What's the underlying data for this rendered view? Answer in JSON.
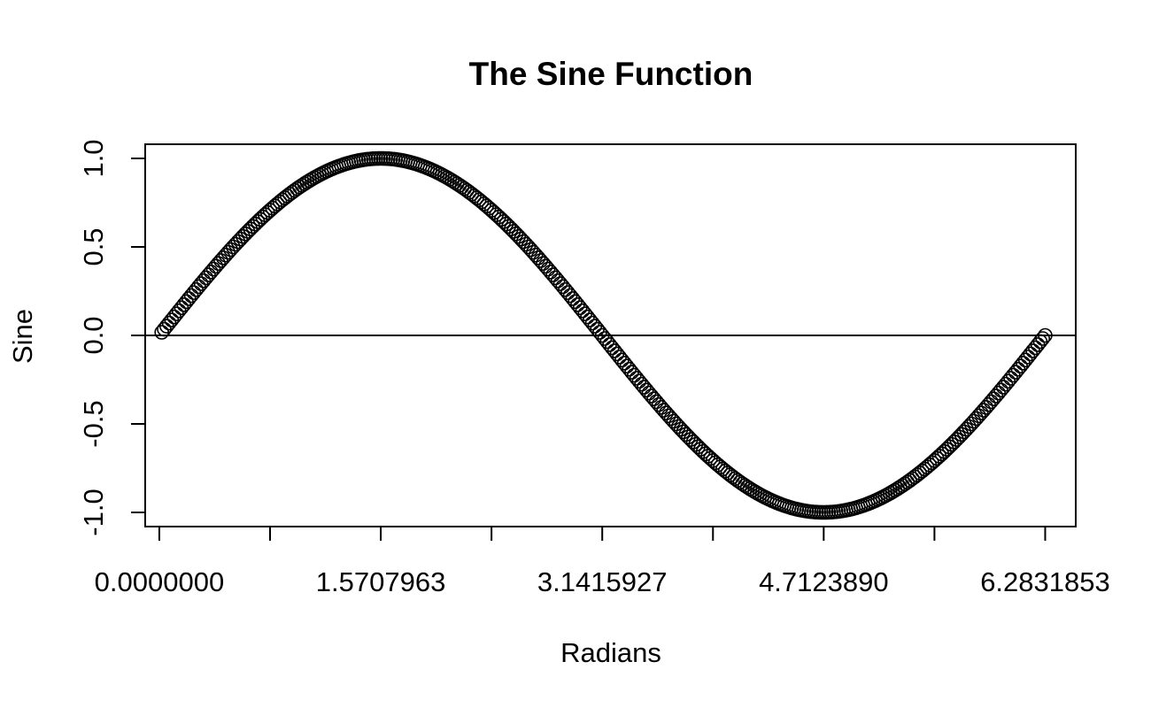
{
  "chart_data": {
    "type": "scatter",
    "title": "The Sine Function",
    "xlabel": "Radians",
    "ylabel": "Sine",
    "xlim": [
      -0.1,
      6.5
    ],
    "ylim": [
      -1.08,
      1.08
    ],
    "x_ticks": [
      0,
      0.7853982,
      1.5707963,
      2.3561945,
      3.1415927,
      3.9269908,
      4.712389,
      5.4977871,
      6.2831853
    ],
    "x_tick_labels": [
      "0.0000000",
      "",
      "1.5707963",
      "",
      "3.1415927",
      "",
      "4.7123890",
      "",
      "6.2831853"
    ],
    "y_ticks": [
      -1.0,
      -0.5,
      0.0,
      0.5,
      1.0
    ],
    "y_tick_labels": [
      "-1.0",
      "-0.5",
      "0.0",
      "0.5",
      "1.0"
    ],
    "reference_line_y": 0,
    "series": [
      {
        "function": "sin",
        "x_start": 0.0174533,
        "x_end": 6.2831853,
        "step": 0.0174533,
        "color": "#000000",
        "marker": "open-circle"
      }
    ],
    "grid": false,
    "legend": "none"
  }
}
